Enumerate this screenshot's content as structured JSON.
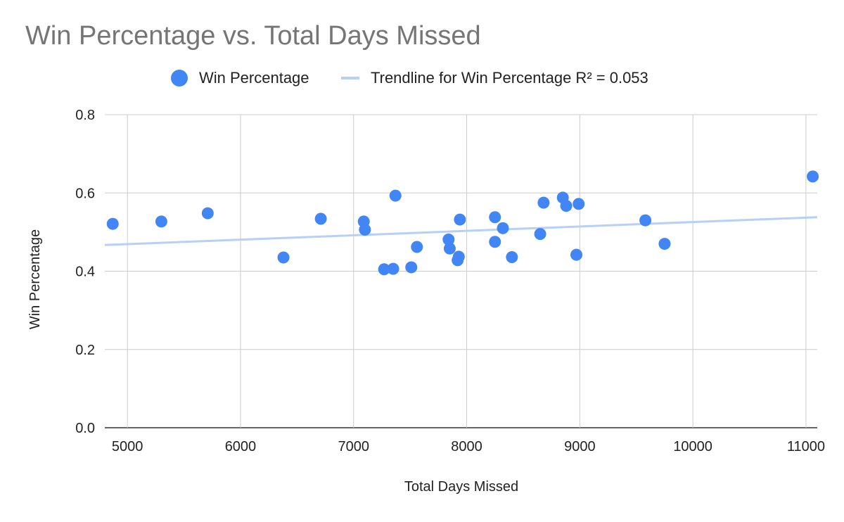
{
  "chart_data": {
    "type": "scatter",
    "title": "Win Percentage vs. Total Days Missed",
    "xlabel": "Total Days Missed",
    "ylabel": "Win Percentage",
    "xlim": [
      4800,
      11100
    ],
    "ylim": [
      0,
      0.8
    ],
    "x_ticks": [
      "5000",
      "6000",
      "7000",
      "8000",
      "9000",
      "10000",
      "11000"
    ],
    "y_ticks": [
      "0.0",
      "0.2",
      "0.4",
      "0.6",
      "0.8"
    ],
    "grid": true,
    "legend_position": "top",
    "series": [
      {
        "name": "Win Percentage",
        "color": "#4285f4",
        "points": [
          [
            4870,
            0.521
          ],
          [
            5300,
            0.527
          ],
          [
            5710,
            0.548
          ],
          [
            6380,
            0.435
          ],
          [
            6710,
            0.534
          ],
          [
            7090,
            0.527
          ],
          [
            7100,
            0.506
          ],
          [
            7270,
            0.405
          ],
          [
            7350,
            0.406
          ],
          [
            7370,
            0.593
          ],
          [
            7510,
            0.41
          ],
          [
            7560,
            0.462
          ],
          [
            7840,
            0.481
          ],
          [
            7850,
            0.458
          ],
          [
            7920,
            0.428
          ],
          [
            7930,
            0.437
          ],
          [
            7940,
            0.532
          ],
          [
            8250,
            0.538
          ],
          [
            8250,
            0.475
          ],
          [
            8320,
            0.51
          ],
          [
            8400,
            0.436
          ],
          [
            8650,
            0.495
          ],
          [
            8680,
            0.575
          ],
          [
            8850,
            0.588
          ],
          [
            8880,
            0.567
          ],
          [
            8970,
            0.442
          ],
          [
            8990,
            0.572
          ],
          [
            9580,
            0.53
          ],
          [
            9750,
            0.47
          ],
          [
            11060,
            0.642
          ]
        ]
      }
    ],
    "trendline": {
      "name": "Trendline for Win Percentage R² = 0.053",
      "color": "#b7d0f7",
      "points": [
        [
          4800,
          0.467
        ],
        [
          11100,
          0.538
        ]
      ]
    }
  }
}
